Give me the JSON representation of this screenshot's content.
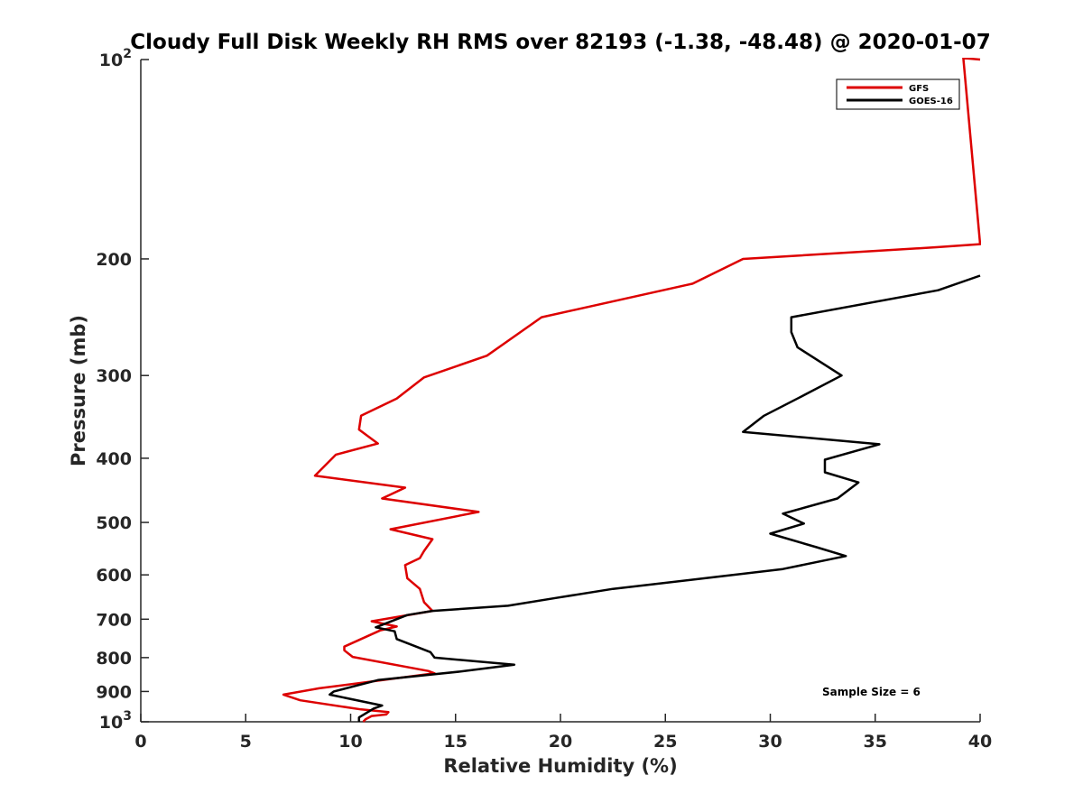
{
  "chart_data": {
    "type": "line",
    "title": "Cloudy Full Disk Weekly RH RMS over 82193 (-1.38, -48.48) @ 2020-01-07",
    "xlabel": "Relative Humidity (%)",
    "ylabel": "Pressure (mb)",
    "xlim": [
      0,
      40
    ],
    "ylim": [
      100,
      1000
    ],
    "y_scale": "log",
    "y_reversed": true,
    "grid": false,
    "legend_position": "top-right",
    "x_ticks": [
      "0",
      "5",
      "10",
      "15",
      "20",
      "25",
      "30",
      "35",
      "40"
    ],
    "y_ticks": [
      {
        "value": 100,
        "base": "10",
        "exp": "2"
      },
      {
        "value": 200,
        "label": "200"
      },
      {
        "value": 300,
        "label": "300"
      },
      {
        "value": 400,
        "label": "400"
      },
      {
        "value": 500,
        "label": "500"
      },
      {
        "value": 600,
        "label": "600"
      },
      {
        "value": 700,
        "label": "700"
      },
      {
        "value": 800,
        "label": "800"
      },
      {
        "value": 900,
        "label": "900"
      },
      {
        "value": 1000,
        "base": "10",
        "exp": "3"
      }
    ],
    "series": [
      {
        "name": "GFS",
        "color": "#dd0000",
        "points": [
          [
            40.0,
            100
          ],
          [
            39.2,
            99.5
          ],
          [
            40.0,
            190
          ],
          [
            38.0,
            192
          ],
          [
            28.7,
            200
          ],
          [
            26.3,
            218
          ],
          [
            19.1,
            245
          ],
          [
            16.5,
            280
          ],
          [
            13.5,
            302
          ],
          [
            12.2,
            325
          ],
          [
            10.5,
            345
          ],
          [
            10.4,
            362
          ],
          [
            11.3,
            380
          ],
          [
            9.3,
            395
          ],
          [
            8.3,
            425
          ],
          [
            12.6,
            443
          ],
          [
            11.5,
            460
          ],
          [
            16.1,
            482
          ],
          [
            11.9,
            512
          ],
          [
            13.9,
            530
          ],
          [
            13.5,
            552
          ],
          [
            13.3,
            566
          ],
          [
            12.6,
            580
          ],
          [
            12.7,
            607
          ],
          [
            13.3,
            630
          ],
          [
            13.5,
            660
          ],
          [
            13.9,
            680
          ],
          [
            11.0,
            705
          ],
          [
            12.2,
            718
          ],
          [
            11.4,
            728
          ],
          [
            9.7,
            770
          ],
          [
            9.7,
            780
          ],
          [
            10.1,
            798
          ],
          [
            13.7,
            838
          ],
          [
            14.0,
            845
          ],
          [
            8.5,
            890
          ],
          [
            6.8,
            910
          ],
          [
            7.6,
            928
          ],
          [
            10.5,
            958
          ],
          [
            11.8,
            967
          ],
          [
            11.7,
            975
          ],
          [
            11.0,
            980
          ],
          [
            10.7,
            992
          ],
          [
            10.6,
            1000
          ]
        ]
      },
      {
        "name": "GOES-16",
        "color": "#000000",
        "points": [
          [
            40.0,
            212
          ],
          [
            38.0,
            223
          ],
          [
            31.0,
            245
          ],
          [
            31.0,
            258
          ],
          [
            31.3,
            272
          ],
          [
            33.4,
            300
          ],
          [
            31.3,
            325
          ],
          [
            29.7,
            345
          ],
          [
            28.7,
            365
          ],
          [
            35.2,
            381
          ],
          [
            32.6,
            402
          ],
          [
            32.6,
            420
          ],
          [
            34.2,
            435
          ],
          [
            33.2,
            460
          ],
          [
            30.6,
            485
          ],
          [
            31.6,
            502
          ],
          [
            30.0,
            520
          ],
          [
            32.2,
            545
          ],
          [
            33.6,
            562
          ],
          [
            30.6,
            588
          ],
          [
            27.3,
            605
          ],
          [
            22.5,
            630
          ],
          [
            19.8,
            650
          ],
          [
            17.5,
            668
          ],
          [
            13.9,
            680
          ],
          [
            12.7,
            690
          ],
          [
            11.2,
            720
          ],
          [
            12.1,
            730
          ],
          [
            12.2,
            750
          ],
          [
            13.8,
            785
          ],
          [
            14.0,
            800
          ],
          [
            17.8,
            820
          ],
          [
            15.2,
            840
          ],
          [
            11.3,
            865
          ],
          [
            9.2,
            900
          ],
          [
            9.0,
            910
          ],
          [
            11.5,
            945
          ],
          [
            11.1,
            955
          ],
          [
            10.4,
            985
          ],
          [
            10.4,
            1000
          ]
        ]
      }
    ],
    "annotation": "Sample Size = 6"
  }
}
